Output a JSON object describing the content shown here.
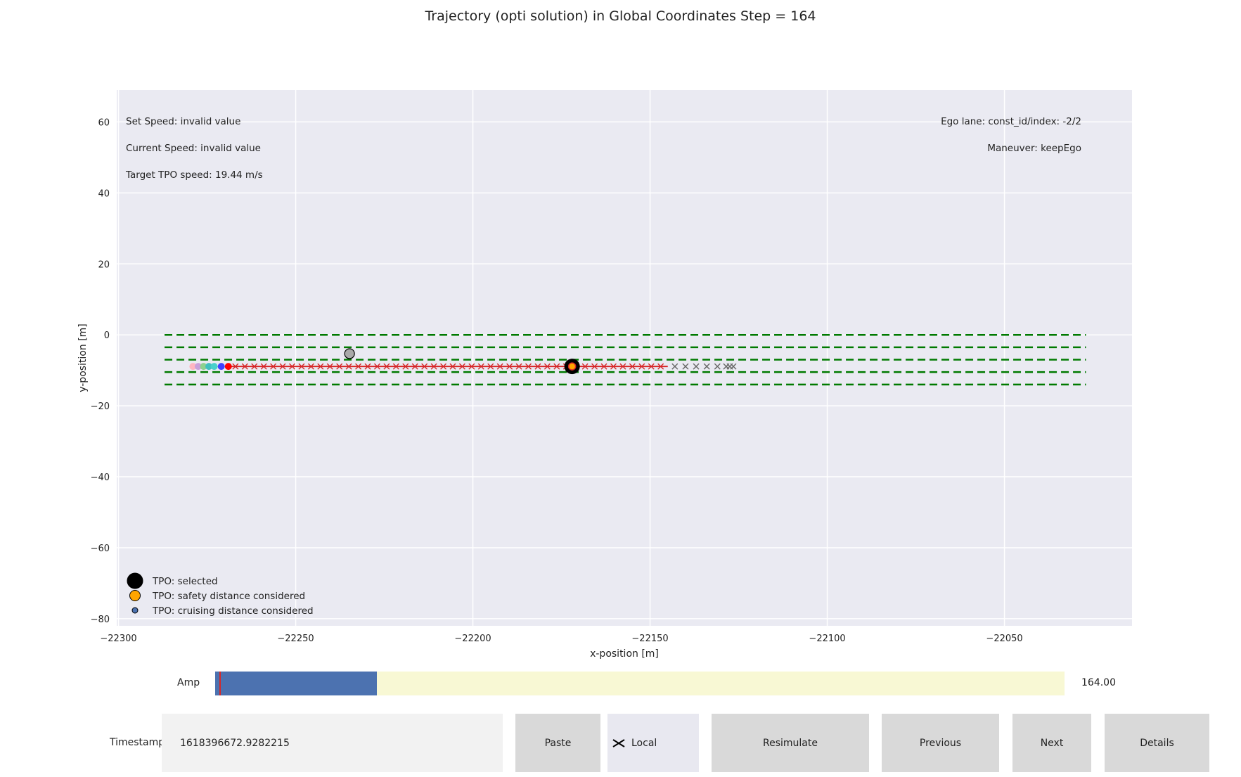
{
  "title": "Trajectory (opti solution) in Global Coordinates Step = 164",
  "chart_data": {
    "type": "scatter",
    "xlabel": "x-position [m]",
    "ylabel": "y-position [m]",
    "xlim": [
      -22300.5,
      -22014
    ],
    "ylim": [
      -82,
      69
    ],
    "xticks": [
      -22300,
      -22250,
      -22200,
      -22150,
      -22100,
      -22050
    ],
    "yticks": [
      60,
      40,
      20,
      0,
      -20,
      -40,
      -60,
      -80
    ],
    "xtick_labels": [
      "−22300",
      "−22250",
      "−22200",
      "−22150",
      "−22100",
      "−22050"
    ],
    "ytick_labels": [
      "60",
      "40",
      "20",
      "0",
      "−20",
      "−40",
      "−60",
      "−80"
    ],
    "grid": true,
    "annotations_left": [
      "Set Speed: invalid value",
      "Current Speed: invalid value",
      "Target TPO speed: 19.44 m/s"
    ],
    "annotations_right": [
      "Ego lane: const_id/index: -2/2",
      "Maneuver: keepEgo"
    ],
    "lane_lines": [
      {
        "y": 0,
        "x_start": -22287,
        "x_end": -22027
      },
      {
        "y": -3.5,
        "x_start": -22287,
        "x_end": -22027
      },
      {
        "y": -7,
        "x_start": -22287,
        "x_end": -22027
      },
      {
        "y": -10.5,
        "x_start": -22287,
        "x_end": -22027
      },
      {
        "y": -14,
        "x_start": -22287,
        "x_end": -22027
      }
    ],
    "lane_color": "#007a00",
    "trajectory": {
      "color": "#d62728",
      "x_start": -22269,
      "x_end": -22145,
      "y": -8.9
    },
    "trajectory_x_markers": {
      "color": "#d62728",
      "x_start": -22267,
      "x_end": -22147,
      "count": 46,
      "y": -8.9
    },
    "prediction_x_markers": {
      "color": "#666666",
      "x": [
        -22143,
        -22140,
        -22137,
        -22134,
        -22131,
        -22128.5,
        -22127.5,
        -22126.5
      ],
      "y": -8.9
    },
    "ego_points": [
      {
        "x": -22279,
        "y": -8.9,
        "color": "#ffb6c1"
      },
      {
        "x": -22277.5,
        "y": -8.9,
        "color": "#c9a0dc"
      },
      {
        "x": -22276,
        "y": -8.9,
        "color": "#8fd18f"
      },
      {
        "x": -22274.5,
        "y": -8.9,
        "color": "#40c0c0"
      },
      {
        "x": -22273,
        "y": -8.9,
        "color": "#48d1cc"
      },
      {
        "x": -22271,
        "y": -8.9,
        "color": "#4040ff"
      },
      {
        "x": -22269,
        "y": -8.9,
        "color": "#ff0000"
      }
    ],
    "objects": [
      {
        "name": "other_object",
        "x": -22234.8,
        "y": -5.3,
        "color": "#a9a9a9"
      },
      {
        "name": "tpo_selected",
        "x": -22172,
        "y": -8.9,
        "color": "#000000"
      }
    ],
    "legend_position": "lower-left",
    "legend": [
      {
        "label": "TPO: selected",
        "color": "#000000",
        "size": "large"
      },
      {
        "label": "TPO: safety distance considered",
        "color": "#ffa500",
        "size": "medium"
      },
      {
        "label": "TPO: cruising distance considered",
        "color": "#4c72b0",
        "size": "small"
      }
    ]
  },
  "controls": {
    "amp_label": "Amp",
    "amp_value_text": "164.00",
    "amp_fraction": 0.19,
    "amp_marker_fraction": 0.005,
    "timestamp_label": "Timestamp",
    "timestamp_value": "1618396672.9282215",
    "paste_label": "Paste",
    "local_label": "Local",
    "resimulate_label": "Resimulate",
    "previous_label": "Previous",
    "next_label": "Next",
    "details_label": "Details"
  },
  "colors": {
    "axes_bg": "#eaeaf2",
    "grid": "#ffffff",
    "button_bg": "#d9d9d9",
    "slider_fill": "#4c72b0",
    "slider_bg": "#f8f8d4"
  }
}
